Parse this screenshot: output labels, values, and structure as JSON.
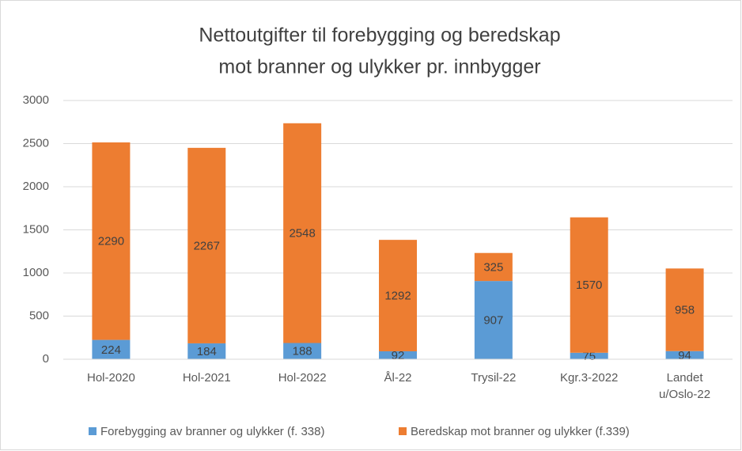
{
  "chart_data": {
    "type": "stacked_bar",
    "title": [
      "Nettoutgifter til forebygging og beredskap",
      "mot branner og ulykker pr. innbygger"
    ],
    "categories": [
      "Hol-2020",
      "Hol-2021",
      "Hol-2022",
      "Ål-22",
      "Trysil-22",
      "Kgr.3-2022",
      "Landet u/Oslo-22"
    ],
    "series": [
      {
        "name": "Forebygging av branner og ulykker (f. 338)",
        "color": "#5b9bd5",
        "values": [
          224,
          184,
          188,
          92,
          907,
          75,
          94
        ]
      },
      {
        "name": "Beredskap mot branner og ulykker (f.339)",
        "color": "#ed7d31",
        "values": [
          2290,
          2267,
          2548,
          1292,
          325,
          1570,
          958
        ]
      }
    ],
    "ylim": [
      0,
      3000
    ],
    "yticks": [
      0,
      500,
      1000,
      1500,
      2000,
      2500,
      3000
    ],
    "grid": true,
    "legend": "bottom"
  }
}
